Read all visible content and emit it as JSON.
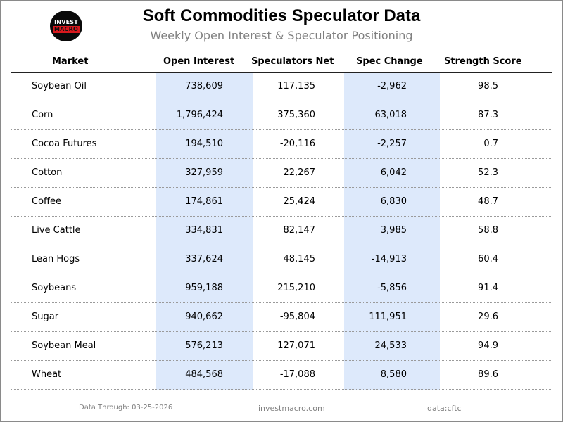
{
  "logo": {
    "line1": "INVEST",
    "line2": "MACRO"
  },
  "header": {
    "title": "Soft Commodities Speculator Data",
    "subtitle": "Weekly Open Interest & Speculator Positioning"
  },
  "chart_data": {
    "type": "table",
    "title": "Soft Commodities Speculator Data",
    "subtitle": "Weekly Open Interest & Speculator Positioning",
    "columns": [
      "Market",
      "Open Interest",
      "Speculators Net",
      "Spec Change",
      "Strength Score"
    ],
    "rows": [
      {
        "market": "Soybean Oil",
        "open_interest": "738,609",
        "spec_net": "117,135",
        "spec_change": "-2,962",
        "strength": "98.5"
      },
      {
        "market": "Corn",
        "open_interest": "1,796,424",
        "spec_net": "375,360",
        "spec_change": "63,018",
        "strength": "87.3"
      },
      {
        "market": "Cocoa Futures",
        "open_interest": "194,510",
        "spec_net": "-20,116",
        "spec_change": "-2,257",
        "strength": "0.7"
      },
      {
        "market": "Cotton",
        "open_interest": "327,959",
        "spec_net": "22,267",
        "spec_change": "6,042",
        "strength": "52.3"
      },
      {
        "market": "Coffee",
        "open_interest": "174,861",
        "spec_net": "25,424",
        "spec_change": "6,830",
        "strength": "48.7"
      },
      {
        "market": "Live Cattle",
        "open_interest": "334,831",
        "spec_net": "82,147",
        "spec_change": "3,985",
        "strength": "58.8"
      },
      {
        "market": "Lean Hogs",
        "open_interest": "337,624",
        "spec_net": "48,145",
        "spec_change": "-14,913",
        "strength": "60.4"
      },
      {
        "market": "Soybeans",
        "open_interest": "959,188",
        "spec_net": "215,210",
        "spec_change": "-5,856",
        "strength": "91.4"
      },
      {
        "market": "Sugar",
        "open_interest": "940,662",
        "spec_net": "-95,804",
        "spec_change": "111,951",
        "strength": "29.6"
      },
      {
        "market": "Soybean Meal",
        "open_interest": "576,213",
        "spec_net": "127,071",
        "spec_change": "24,533",
        "strength": "94.9"
      },
      {
        "market": "Wheat",
        "open_interest": "484,568",
        "spec_net": "-17,088",
        "spec_change": "8,580",
        "strength": "89.6"
      }
    ],
    "highlight_columns": [
      "Open Interest",
      "Spec Change"
    ],
    "highlight_color": "#dde9fb"
  },
  "footer": {
    "date": "Data Through: 03-25-2026",
    "site": "investmacro.com",
    "source": "data:cftc"
  },
  "colors": {
    "title": "#000000",
    "subtitle": "#808080",
    "logo_bg": "#0a0a0a",
    "logo_accent": "#d8191e"
  }
}
